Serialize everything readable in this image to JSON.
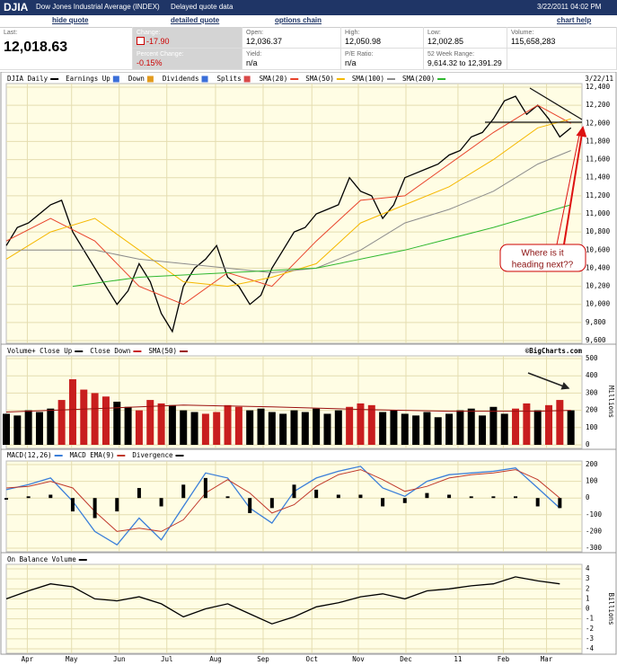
{
  "header": {
    "symbol": "DJIA",
    "name": "Dow Jones Industrial Average (INDEX)",
    "note": "Delayed quote data",
    "datetime": "3/22/2011 04:02 PM"
  },
  "links": [
    "hide quote",
    "detailed quote",
    "options chain",
    "chart help"
  ],
  "quote": [
    {
      "label": "Last:",
      "value": "12,018.63"
    },
    {
      "label": "Change:",
      "value": "-17.90"
    },
    {
      "label": "Percent Change:",
      "value": "-0.15%"
    },
    {
      "label": "Open:",
      "value": "12,036.37"
    },
    {
      "label": "Yield:",
      "value": "n/a"
    },
    {
      "label": "High:",
      "value": "12,050.98"
    },
    {
      "label": "P/E Ratio:",
      "value": "n/a"
    },
    {
      "label": "Low:",
      "value": "12,002.85"
    },
    {
      "label": "52 Week Range:",
      "value": "9,614.32 to 12,391.29"
    },
    {
      "label": "Volume:",
      "value": "115,658,283"
    }
  ],
  "chart_data": [
    {
      "type": "line",
      "date": "3/22/11",
      "markers": [
        "Earnings Up",
        "Down",
        "Dividends",
        "Splits"
      ],
      "annotation": [
        "Where is it",
        "heading next??"
      ],
      "xlim": [
        0,
        52
      ],
      "ylim": [
        9600,
        12400
      ],
      "grid": true,
      "yticks": [
        {
          "value": 12400,
          "label": "12,400"
        },
        {
          "value": 12200,
          "label": "12,200"
        },
        {
          "value": 12000,
          "label": "12,000"
        },
        {
          "value": 11800,
          "label": "11,800"
        },
        {
          "value": 11600,
          "label": "11,600"
        },
        {
          "value": 11400,
          "label": "11,400"
        },
        {
          "value": 11200,
          "label": "11,200"
        },
        {
          "value": 11000,
          "label": "11,000"
        },
        {
          "value": 10800,
          "label": "10,800"
        },
        {
          "value": 10600,
          "label": "10,600"
        },
        {
          "value": 10400,
          "label": "10,400"
        },
        {
          "value": 10200,
          "label": "10,200"
        },
        {
          "value": 10000,
          "label": "10,000"
        },
        {
          "value": 9800,
          "label": "9,800"
        },
        {
          "value": 9600,
          "label": "9,600"
        }
      ],
      "x": [
        0,
        1,
        2,
        3,
        4,
        5,
        6,
        7,
        8,
        9,
        10,
        11,
        12,
        13,
        14,
        15,
        16,
        17,
        18,
        19,
        20,
        21,
        22,
        23,
        24,
        25,
        26,
        27,
        28,
        29,
        30,
        31,
        32,
        33,
        34,
        35,
        36,
        37,
        38,
        39,
        40,
        41,
        42,
        43,
        44,
        45,
        46,
        47,
        48,
        49,
        50,
        51
      ],
      "series": [
        {
          "name": "DJIA Daily",
          "color": "#000000",
          "values": [
            10650,
            10850,
            10900,
            11000,
            11100,
            11150,
            10800,
            10600,
            10400,
            10200,
            10000,
            10150,
            10450,
            10250,
            9900,
            9700,
            10200,
            10400,
            10500,
            10650,
            10300,
            10200,
            10000,
            10100,
            10400,
            10600,
            10800,
            10850,
            11000,
            11050,
            11100,
            11400,
            11250,
            11200,
            10950,
            11100,
            11400,
            11450,
            11500,
            11550,
            11650,
            11700,
            11850,
            11900,
            12050,
            12250,
            12300,
            12100,
            12200,
            12050,
            11850,
            11950
          ]
        },
        {
          "name": "SMA(20)",
          "color": "#e8432b",
          "x": [
            0,
            4,
            8,
            12,
            16,
            20,
            24,
            28,
            32,
            36,
            40,
            44,
            48,
            51
          ],
          "values": [
            10700,
            10950,
            10700,
            10200,
            10000,
            10350,
            10200,
            10700,
            11150,
            11200,
            11550,
            11900,
            12200,
            12000
          ]
        },
        {
          "name": "SMA(50)",
          "color": "#f5b800",
          "x": [
            0,
            4,
            8,
            12,
            16,
            20,
            24,
            28,
            32,
            36,
            40,
            44,
            48,
            51
          ],
          "values": [
            10500,
            10800,
            10950,
            10600,
            10250,
            10200,
            10300,
            10450,
            10900,
            11100,
            11300,
            11600,
            11950,
            12050
          ]
        },
        {
          "name": "SMA(100)",
          "color": "#8c8c8c",
          "x": [
            0,
            4,
            8,
            12,
            16,
            20,
            24,
            28,
            32,
            36,
            40,
            44,
            48,
            51
          ],
          "values": [
            10600,
            10600,
            10600,
            10500,
            10450,
            10400,
            10350,
            10400,
            10600,
            10900,
            11050,
            11250,
            11550,
            11700
          ]
        },
        {
          "name": "SMA(200)",
          "color": "#2fb82f",
          "x": [
            6,
            12,
            20,
            28,
            36,
            44,
            51
          ],
          "values": [
            10200,
            10300,
            10350,
            10400,
            10600,
            10850,
            11100
          ]
        }
      ]
    },
    {
      "type": "bar",
      "copyright": "©BigCharts.com",
      "y_label": "Millions",
      "xlim": [
        0,
        52
      ],
      "ylim": [
        0,
        500
      ],
      "grid": true,
      "yticks": [
        500,
        400,
        300,
        200,
        100,
        0
      ],
      "x": [
        0,
        1,
        2,
        3,
        4,
        5,
        6,
        7,
        8,
        9,
        10,
        11,
        12,
        13,
        14,
        15,
        16,
        17,
        18,
        19,
        20,
        21,
        22,
        23,
        24,
        25,
        26,
        27,
        28,
        29,
        30,
        31,
        32,
        33,
        34,
        35,
        36,
        37,
        38,
        39,
        40,
        41,
        42,
        43,
        44,
        45,
        46,
        47,
        48,
        49,
        50,
        51
      ],
      "series": [
        {
          "name": "Volume+ Close Up",
          "color": "#000000",
          "style": "bar",
          "values": [
            180,
            170,
            200,
            190,
            210,
            null,
            null,
            null,
            null,
            null,
            250,
            220,
            null,
            null,
            null,
            230,
            200,
            190,
            null,
            null,
            null,
            null,
            200,
            210,
            190,
            180,
            200,
            190,
            210,
            180,
            200,
            null,
            null,
            null,
            190,
            200,
            180,
            170,
            190,
            160,
            180,
            200,
            210,
            170,
            220,
            180,
            null,
            null,
            200,
            null,
            null,
            200
          ]
        },
        {
          "name": "Close Down",
          "color": "#c81e1e",
          "style": "bar",
          "values": [
            null,
            null,
            null,
            null,
            null,
            260,
            380,
            320,
            300,
            280,
            null,
            null,
            200,
            260,
            240,
            null,
            null,
            null,
            180,
            190,
            230,
            220,
            null,
            null,
            null,
            null,
            null,
            null,
            null,
            null,
            null,
            220,
            240,
            230,
            null,
            null,
            null,
            null,
            null,
            null,
            null,
            null,
            null,
            null,
            null,
            null,
            210,
            240,
            null,
            230,
            260,
            null
          ]
        },
        {
          "name": "SMA(50)",
          "color": "#9b1010",
          "x": [
            0,
            8,
            16,
            24,
            32,
            40,
            48,
            51
          ],
          "values": [
            190,
            210,
            230,
            220,
            205,
            195,
            195,
            200
          ]
        }
      ]
    },
    {
      "type": "line",
      "xlim": [
        0,
        52
      ],
      "ylim": [
        -300,
        200
      ],
      "grid": true,
      "yticks": [
        200,
        100,
        0,
        -100,
        -200,
        -300
      ],
      "x": [
        0,
        2,
        4,
        6,
        8,
        10,
        12,
        14,
        16,
        18,
        20,
        22,
        24,
        26,
        28,
        30,
        32,
        34,
        36,
        38,
        40,
        42,
        44,
        46,
        48,
        50
      ],
      "series": [
        {
          "name": "MACD(12,26)",
          "color": "#3b7fd9",
          "values": [
            50,
            80,
            120,
            -20,
            -200,
            -280,
            -120,
            -250,
            -50,
            150,
            120,
            -60,
            -150,
            40,
            120,
            160,
            190,
            60,
            10,
            100,
            140,
            150,
            160,
            180,
            60,
            -60
          ]
        },
        {
          "name": "MACD EMA(9)",
          "color": "#c0392b",
          "values": [
            60,
            70,
            100,
            60,
            -80,
            -200,
            -180,
            -200,
            -130,
            30,
            110,
            30,
            -90,
            -40,
            70,
            140,
            170,
            110,
            40,
            70,
            120,
            140,
            150,
            170,
            110,
            0
          ]
        },
        {
          "name": "Divergence",
          "color": "#000000",
          "style": "bar",
          "values": [
            -10,
            10,
            20,
            -80,
            -120,
            -80,
            60,
            -50,
            80,
            120,
            10,
            -90,
            -60,
            80,
            50,
            20,
            20,
            -50,
            -30,
            30,
            20,
            10,
            10,
            10,
            -50,
            -60
          ]
        }
      ]
    },
    {
      "type": "line",
      "y_label": "Billions",
      "xlim": [
        0,
        52
      ],
      "ylim": [
        -4,
        4
      ],
      "grid": true,
      "yticks": [
        4,
        3,
        2,
        1,
        0,
        -1,
        -2,
        -3,
        -4
      ],
      "xticks": [
        {
          "value": 1.9,
          "label": "Apr"
        },
        {
          "value": 5.9,
          "label": "May"
        },
        {
          "value": 10.2,
          "label": "Jun"
        },
        {
          "value": 14.5,
          "label": "Jul"
        },
        {
          "value": 18.9,
          "label": "Aug"
        },
        {
          "value": 23.2,
          "label": "Sep"
        },
        {
          "value": 27.6,
          "label": "Oct"
        },
        {
          "value": 31.8,
          "label": "Nov"
        },
        {
          "value": 36.1,
          "label": "Dec"
        },
        {
          "value": 40.8,
          "label": "11"
        },
        {
          "value": 44.9,
          "label": "Feb"
        },
        {
          "value": 48.8,
          "label": "Mar"
        }
      ],
      "x": [
        0,
        2,
        4,
        6,
        8,
        10,
        12,
        14,
        16,
        18,
        20,
        22,
        24,
        26,
        28,
        30,
        32,
        34,
        36,
        38,
        40,
        42,
        44,
        46,
        48,
        50
      ],
      "series": [
        {
          "name": "On Balance Volume",
          "color": "#000000",
          "values": [
            1.0,
            1.8,
            2.5,
            2.2,
            1.0,
            0.8,
            1.2,
            0.5,
            -0.8,
            0,
            0.5,
            -0.5,
            -1.5,
            -0.8,
            0.2,
            0.6,
            1.2,
            1.5,
            1.0,
            1.8,
            2.0,
            2.3,
            2.5,
            3.2,
            2.8,
            2.5
          ]
        }
      ]
    }
  ]
}
